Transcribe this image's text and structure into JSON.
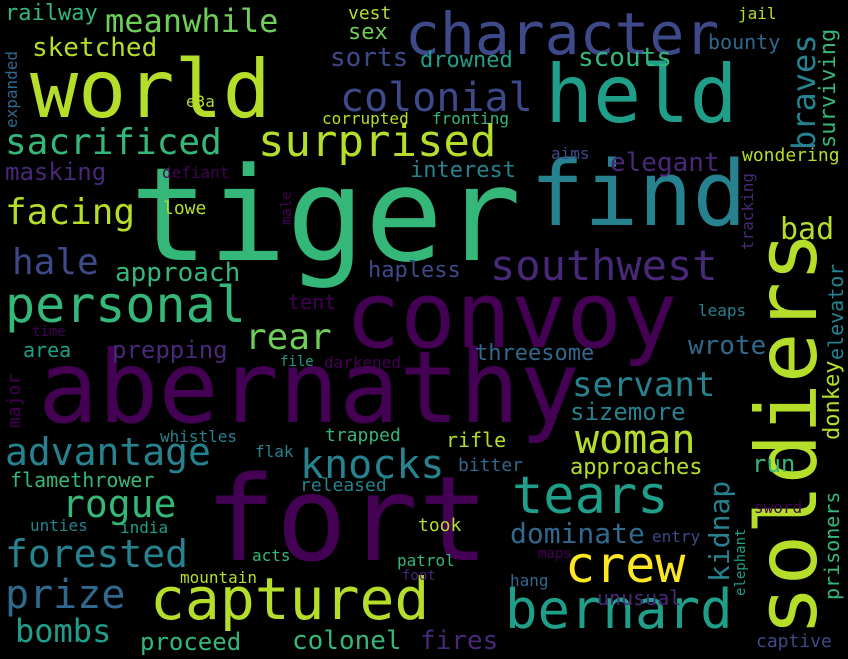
{
  "palette": {
    "background": "#000000",
    "purple_deep": "#440154",
    "purple": "#482878",
    "indigo": "#3e4989",
    "blue": "#31688e",
    "teal": "#26828e",
    "green_teal": "#1f9e89",
    "green": "#35b779",
    "lime": "#6ece58",
    "yellow_green": "#b5de2b",
    "yellow": "#fde725"
  },
  "words": [
    {
      "text": "tiger",
      "color": "#35b779"
    },
    {
      "text": "abernathy",
      "color": "#440154"
    },
    {
      "text": "fort",
      "color": "#440154"
    },
    {
      "text": "convoy",
      "color": "#440154"
    },
    {
      "text": "world",
      "color": "#b5de2b"
    },
    {
      "text": "held",
      "color": "#1f9e89"
    },
    {
      "text": "find",
      "color": "#26828e"
    },
    {
      "text": "soldiers",
      "color": "#b5de2b"
    },
    {
      "text": "character",
      "color": "#3e4989"
    },
    {
      "text": "captured",
      "color": "#b5de2b"
    },
    {
      "text": "bernard",
      "color": "#1f9e89"
    },
    {
      "text": "personal",
      "color": "#35b779"
    },
    {
      "text": "crew",
      "color": "#fde725"
    },
    {
      "text": "tears",
      "color": "#1f9e89"
    },
    {
      "text": "southwest",
      "color": "#482878"
    },
    {
      "text": "surprised",
      "color": "#b5de2b"
    },
    {
      "text": "sacrificed",
      "color": "#35b779"
    },
    {
      "text": "colonial",
      "color": "#3e4989"
    },
    {
      "text": "woman",
      "color": "#b5de2b"
    },
    {
      "text": "knocks",
      "color": "#26828e"
    },
    {
      "text": "advantage",
      "color": "#26828e"
    },
    {
      "text": "forested",
      "color": "#26828e"
    },
    {
      "text": "rogue",
      "color": "#35b779"
    },
    {
      "text": "prize",
      "color": "#31688e"
    },
    {
      "text": "meanwhile",
      "color": "#6ece58"
    },
    {
      "text": "facing",
      "color": "#b5de2b"
    },
    {
      "text": "servant",
      "color": "#26828e"
    },
    {
      "text": "rear",
      "color": "#6ece58"
    },
    {
      "text": "hale",
      "color": "#3e4989"
    },
    {
      "text": "bombs",
      "color": "#1f9e89"
    },
    {
      "text": "braves",
      "color": "#26828e"
    },
    {
      "text": "bad",
      "color": "#b5de2b"
    },
    {
      "text": "dominate",
      "color": "#31688e"
    },
    {
      "text": "kidnap",
      "color": "#26828e"
    },
    {
      "text": "sketched",
      "color": "#b5de2b"
    },
    {
      "text": "railway",
      "color": "#35b779"
    },
    {
      "text": "sorts",
      "color": "#3e4989"
    },
    {
      "text": "scouts",
      "color": "#35b779"
    },
    {
      "text": "drowned",
      "color": "#1f9e89"
    },
    {
      "text": "bounty",
      "color": "#31688e"
    },
    {
      "text": "surviving",
      "color": "#35b779"
    },
    {
      "text": "masking",
      "color": "#482878"
    },
    {
      "text": "elegant",
      "color": "#482878"
    },
    {
      "text": "interest",
      "color": "#26828e"
    },
    {
      "text": "approach",
      "color": "#35b779"
    },
    {
      "text": "hapless",
      "color": "#3e4989"
    },
    {
      "text": "prepping",
      "color": "#482878"
    },
    {
      "text": "threesome",
      "color": "#31688e"
    },
    {
      "text": "wrote",
      "color": "#31688e"
    },
    {
      "text": "sizemore",
      "color": "#26828e"
    },
    {
      "text": "approaches",
      "color": "#b5de2b"
    },
    {
      "text": "flamethrower",
      "color": "#35b779"
    },
    {
      "text": "released",
      "color": "#26828e"
    },
    {
      "text": "colonel",
      "color": "#35b779"
    },
    {
      "text": "proceed",
      "color": "#35b779"
    },
    {
      "text": "fires",
      "color": "#482878"
    },
    {
      "text": "unusual",
      "color": "#482878"
    },
    {
      "text": "took",
      "color": "#b5de2b"
    },
    {
      "text": "run",
      "color": "#35b779"
    },
    {
      "text": "rifle",
      "color": "#b5de2b"
    },
    {
      "text": "bitter",
      "color": "#31688e"
    },
    {
      "text": "trapped",
      "color": "#35b779"
    },
    {
      "text": "tent",
      "color": "#440154"
    },
    {
      "text": "area",
      "color": "#1f9e89"
    },
    {
      "text": "lowe",
      "color": "#b5de2b"
    },
    {
      "text": "defiant",
      "color": "#440154"
    },
    {
      "text": "corrupted",
      "color": "#b5de2b"
    },
    {
      "text": "fronting",
      "color": "#35b779"
    },
    {
      "text": "e3a",
      "color": "#b5de2b"
    },
    {
      "text": "aims",
      "color": "#3e4989"
    },
    {
      "text": "wondering",
      "color": "#b5de2b"
    },
    {
      "text": "tracking",
      "color": "#482878"
    },
    {
      "text": "elevator",
      "color": "#26828e"
    },
    {
      "text": "donkey",
      "color": "#b5de2b"
    },
    {
      "text": "prisoners",
      "color": "#35b779"
    },
    {
      "text": "leaps",
      "color": "#26828e"
    },
    {
      "text": "time",
      "color": "#440154"
    },
    {
      "text": "file",
      "color": "#1f9e89"
    },
    {
      "text": "darkened",
      "color": "#440154"
    },
    {
      "text": "male",
      "color": "#440154"
    },
    {
      "text": "major",
      "color": "#440154"
    },
    {
      "text": "expanded",
      "color": "#31688e"
    },
    {
      "text": "whistles",
      "color": "#26828e"
    },
    {
      "text": "flak",
      "color": "#26828e"
    },
    {
      "text": "unties",
      "color": "#26828e"
    },
    {
      "text": "india",
      "color": "#1f9e89"
    },
    {
      "text": "acts",
      "color": "#35b779"
    },
    {
      "text": "patrol",
      "color": "#35b779"
    },
    {
      "text": "foot",
      "color": "#482878"
    },
    {
      "text": "mountain",
      "color": "#b5de2b"
    },
    {
      "text": "entry",
      "color": "#3e4989"
    },
    {
      "text": "maps",
      "color": "#440154"
    },
    {
      "text": "hang",
      "color": "#31688e"
    },
    {
      "text": "elephant",
      "color": "#1f9e89"
    },
    {
      "text": "sword",
      "color": "#440154"
    },
    {
      "text": "captive",
      "color": "#3e4989"
    },
    {
      "text": "vest",
      "color": "#b5de2b"
    },
    {
      "text": "sex",
      "color": "#6ece58"
    },
    {
      "text": "jail",
      "color": "#b5de2b"
    }
  ]
}
